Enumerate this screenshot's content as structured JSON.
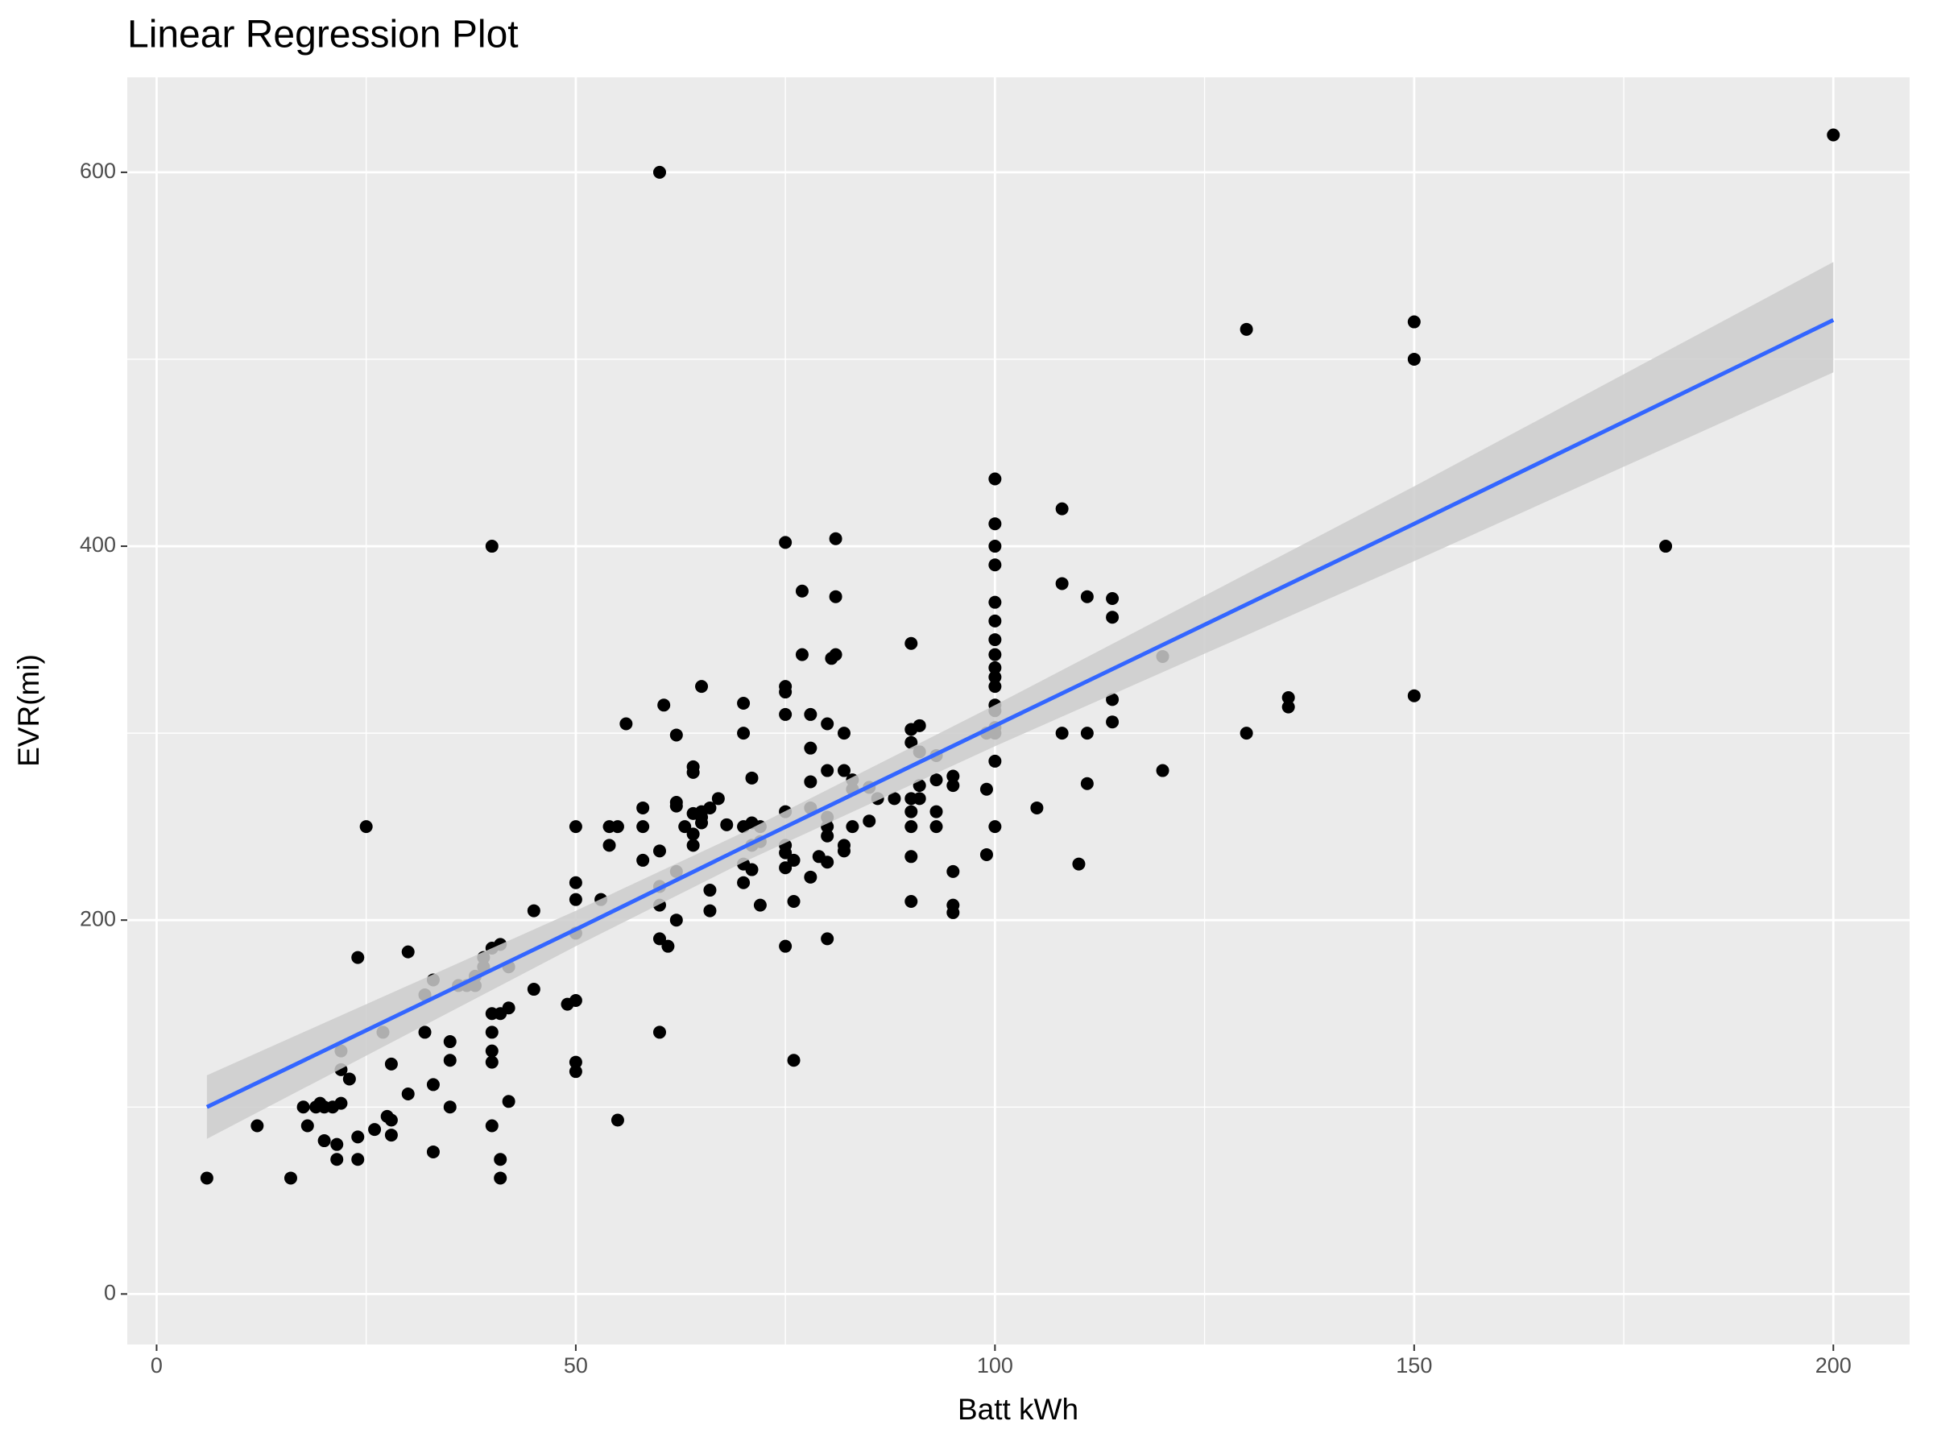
{
  "chart_data": {
    "type": "scatter",
    "title": "Linear Regression Plot",
    "x_label": "Batt kWh",
    "y_label": "EVR(mi)",
    "xlim": [
      -3.5,
      209.1
    ],
    "ylim": [
      -27,
      650.8
    ],
    "xticks": [
      0,
      50,
      100,
      150,
      200
    ],
    "yticks": [
      0,
      200,
      400,
      600
    ],
    "grid": true,
    "points": {
      "color": "#000000",
      "x": [
        6,
        12,
        16,
        17.5,
        18,
        19,
        19.5,
        20,
        20,
        21,
        21.5,
        21.5,
        22,
        22,
        22,
        23,
        24,
        24,
        24,
        25,
        26,
        27,
        27.5,
        28,
        28,
        28,
        30,
        30,
        32,
        32,
        33,
        33,
        33,
        35,
        35,
        35,
        36,
        37,
        38,
        38,
        39,
        39,
        40,
        40,
        40,
        40,
        40,
        40,
        40,
        41,
        41,
        41,
        41,
        42,
        42,
        42,
        45,
        45,
        49,
        50,
        50,
        50,
        50,
        50,
        50,
        50,
        53,
        54,
        54,
        55,
        55,
        56,
        58,
        58,
        58,
        60,
        60,
        60,
        60,
        60,
        60,
        60.5,
        61,
        62,
        62,
        62,
        62,
        62,
        63,
        64,
        64,
        64,
        64,
        64,
        65,
        65,
        65,
        65,
        66,
        66,
        66,
        67,
        68,
        70,
        70,
        70,
        70,
        70,
        71,
        71,
        71,
        71,
        72,
        72,
        72,
        75,
        75,
        75,
        75,
        75,
        75,
        75,
        75,
        75,
        76,
        76,
        76,
        77,
        77,
        78,
        78,
        78,
        78,
        78,
        79,
        80,
        80,
        80,
        80,
        80,
        80,
        80,
        80.5,
        81,
        81,
        81,
        82,
        82,
        82,
        82,
        83,
        83,
        83,
        85,
        85,
        86,
        88,
        90,
        90,
        90,
        90,
        90,
        90,
        90,
        90,
        91,
        91,
        91,
        91,
        93,
        93,
        93,
        93,
        95,
        95,
        95,
        95,
        95,
        99,
        99,
        99,
        100,
        100,
        100,
        100,
        100,
        100,
        100,
        100,
        100,
        100,
        100,
        100,
        100,
        100,
        100,
        100,
        100,
        105,
        108,
        108,
        108,
        110,
        111,
        111,
        111,
        114,
        114,
        114,
        114,
        120,
        120,
        130,
        130,
        135,
        135,
        150,
        150,
        150,
        180,
        200
      ],
      "y": [
        62,
        90,
        62,
        100,
        90,
        100,
        102,
        100,
        82,
        100,
        72,
        80,
        130,
        102,
        120,
        115,
        180,
        72,
        84,
        250,
        88,
        140,
        95,
        123,
        93,
        85,
        107,
        183,
        160,
        140,
        112,
        168,
        76,
        100,
        125,
        135,
        165,
        165,
        170,
        165,
        180,
        175,
        400,
        185,
        150,
        140,
        130,
        124,
        90,
        150,
        72,
        187,
        62,
        103,
        175,
        153,
        205,
        163,
        155,
        157,
        220,
        211,
        193,
        124,
        119,
        250,
        211,
        250,
        240,
        250,
        93,
        305,
        260,
        250,
        232,
        600,
        237,
        218,
        208,
        190,
        140,
        315,
        186,
        261,
        263,
        226,
        200,
        299,
        250,
        279,
        282,
        257,
        246,
        240,
        258,
        252,
        255,
        325,
        260,
        216,
        205,
        265,
        251,
        316,
        300,
        250,
        230,
        220,
        252,
        240,
        227,
        276,
        250,
        242,
        208,
        402,
        325,
        310,
        322,
        258,
        240,
        236,
        228,
        186,
        210,
        232,
        125,
        376,
        342,
        310,
        292,
        274,
        260,
        223,
        234,
        255,
        305,
        280,
        250,
        245,
        190,
        231,
        340,
        404,
        373,
        342,
        300,
        280,
        240,
        237,
        275,
        250,
        270,
        271,
        253,
        265,
        265,
        348,
        302,
        295,
        265,
        258,
        250,
        234,
        210,
        304,
        290,
        272,
        265,
        288,
        275,
        258,
        250,
        277,
        272,
        226,
        208,
        204,
        270,
        235,
        300,
        436,
        412,
        400,
        390,
        370,
        360,
        350,
        342,
        335,
        330,
        325,
        315,
        312,
        303,
        300,
        285,
        250,
        260,
        420,
        380,
        300,
        230,
        373,
        300,
        273,
        372,
        362,
        318,
        306,
        341,
        280,
        516,
        300,
        319,
        314,
        520,
        500,
        320,
        400,
        620
      ]
    },
    "fit": {
      "color": "#3366ff",
      "band_color": "#cccccc",
      "x": [
        6,
        50,
        70,
        100,
        150,
        200
      ],
      "y": [
        100,
        195,
        239,
        304,
        412,
        521
      ],
      "lower": [
        83,
        186,
        231,
        293,
        392,
        493
      ],
      "upper": [
        117,
        205,
        247,
        315,
        432,
        552
      ]
    }
  }
}
